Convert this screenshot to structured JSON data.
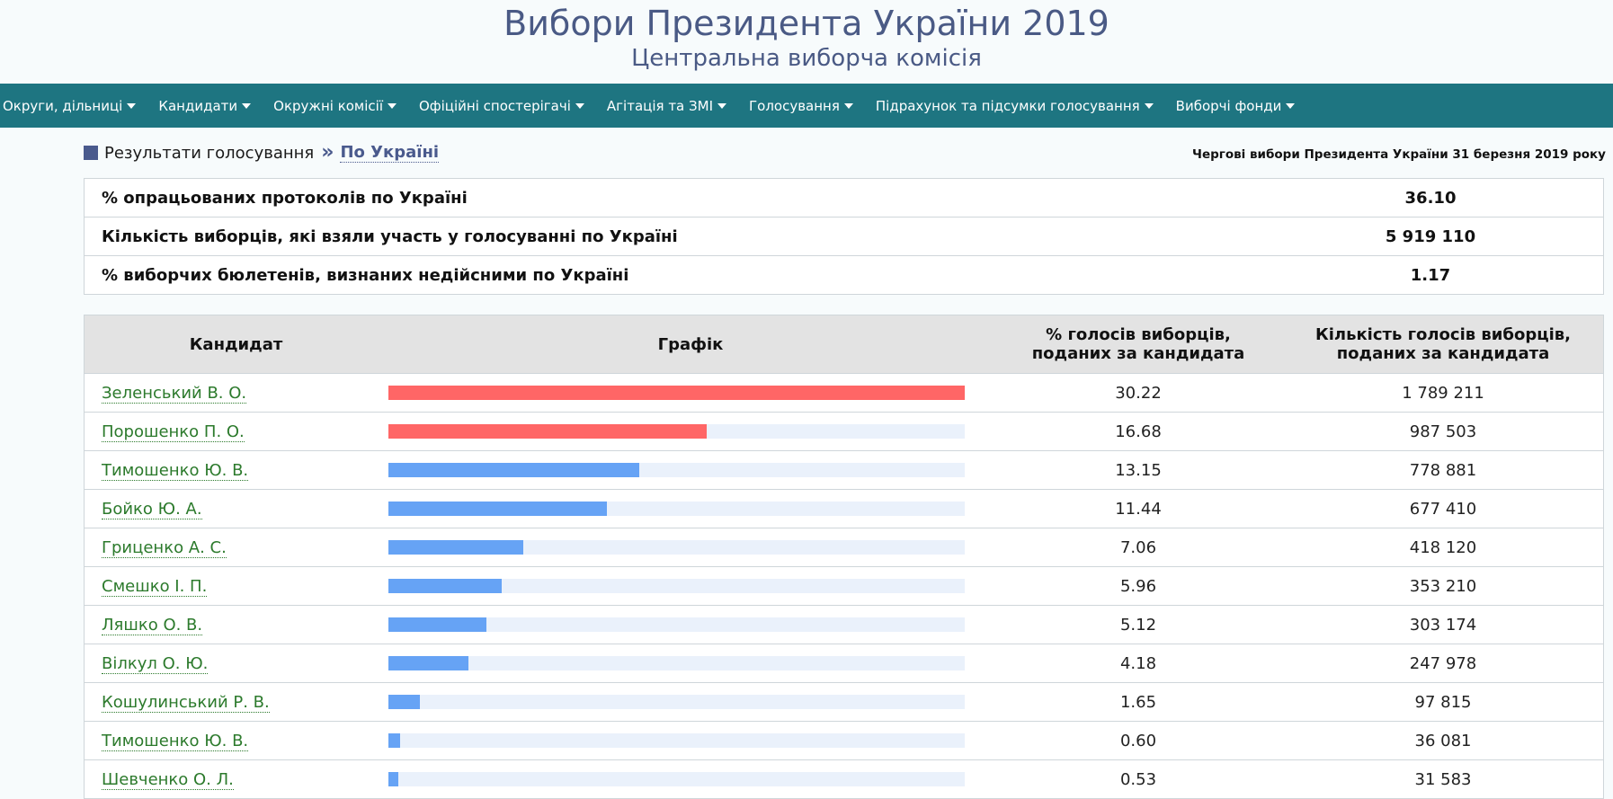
{
  "header": {
    "title": "Вибори Президента України 2019",
    "subtitle": "Центральна виборча комісія"
  },
  "nav": [
    {
      "label": "Округи, дільниці"
    },
    {
      "label": "Кандидати"
    },
    {
      "label": "Окружні комісії"
    },
    {
      "label": "Офіційні спостерігачі"
    },
    {
      "label": "Агітація та ЗМІ"
    },
    {
      "label": "Голосування"
    },
    {
      "label": "Підрахунок та підсумки голосування"
    },
    {
      "label": "Виборчі фонди"
    }
  ],
  "breadcrumb": {
    "section": "Результати голосування",
    "separator": "»",
    "current": "По Україні"
  },
  "election_title": "Чергові вибори Президента України 31 березня 2019 року",
  "stats": [
    {
      "label": "% опрацьованих протоколів по Україні",
      "value": "36.10"
    },
    {
      "label": "Кількість виборців, які взяли участь у голосуванні по Україні",
      "value": "5 919 110"
    },
    {
      "label": "% виборчих бюлетенів, визнаних недійсними по Україні",
      "value": "1.17"
    }
  ],
  "results_table": {
    "headers": {
      "candidate": "Кандидат",
      "graph": "Графік",
      "percent_line1": "% голосів виборців,",
      "percent_line2": "поданих за кандидата",
      "count_line1": "Кількість голосів виборців,",
      "count_line2": "поданих за кандидата"
    },
    "colors": {
      "leader": "#ff6666",
      "other": "#66a3f5",
      "track": "#eaf1fb"
    },
    "rows": [
      {
        "name": "Зеленський В. О.",
        "percent": "30.22",
        "votes": "1 789 211",
        "share": 30.22,
        "leader": true
      },
      {
        "name": "Порошенко П. О.",
        "percent": "16.68",
        "votes": "987 503",
        "share": 16.68,
        "leader": true
      },
      {
        "name": "Тимошенко Ю. В.",
        "percent": "13.15",
        "votes": "778 881",
        "share": 13.15,
        "leader": false
      },
      {
        "name": "Бойко Ю. А.",
        "percent": "11.44",
        "votes": "677 410",
        "share": 11.44,
        "leader": false
      },
      {
        "name": "Гриценко А. С.",
        "percent": "7.06",
        "votes": "418 120",
        "share": 7.06,
        "leader": false
      },
      {
        "name": "Смешко І. П.",
        "percent": "5.96",
        "votes": "353 210",
        "share": 5.96,
        "leader": false
      },
      {
        "name": "Ляшко О. В.",
        "percent": "5.12",
        "votes": "303 174",
        "share": 5.12,
        "leader": false
      },
      {
        "name": "Вілкул О. Ю.",
        "percent": "4.18",
        "votes": "247 978",
        "share": 4.18,
        "leader": false
      },
      {
        "name": "Кошулинський Р. В.",
        "percent": "1.65",
        "votes": "97 815",
        "share": 1.65,
        "leader": false
      },
      {
        "name": "Тимошенко Ю. В.",
        "percent": "0.60",
        "votes": "36 081",
        "share": 0.6,
        "leader": false
      },
      {
        "name": "Шевченко О. Л.",
        "percent": "0.53",
        "votes": "31 583",
        "share": 0.53,
        "leader": false
      }
    ]
  }
}
